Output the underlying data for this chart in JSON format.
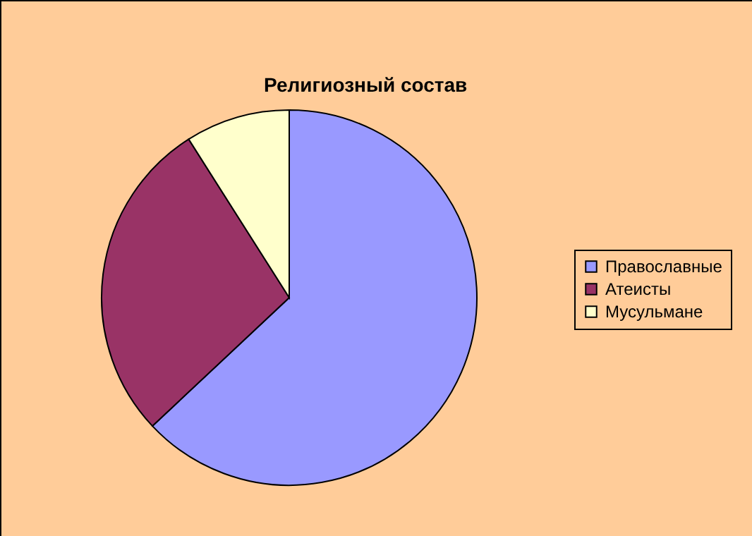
{
  "chart_data": {
    "type": "pie",
    "title": "Религиозный состав",
    "categories": [
      "Православные",
      "Атеисты",
      "Мусульмане"
    ],
    "values": [
      63,
      28,
      9
    ],
    "colors": [
      "#9999ff",
      "#993366",
      "#ffffcc"
    ],
    "legend": "right"
  }
}
